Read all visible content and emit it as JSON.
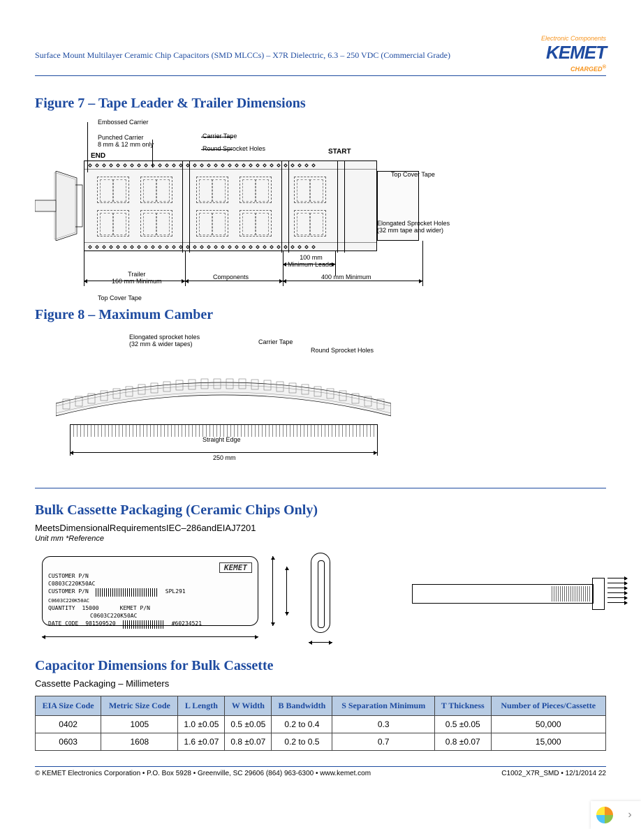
{
  "header": {
    "doc_title": "Surface Mount Multilayer Ceramic Chip Capacitors (SMD MLCCs) – X7R Dielectric, 6.3 – 250 VDC (Commercial Grade)",
    "logo_tagline": "Electronic Components",
    "logo_text": "KEMET",
    "logo_charged": "CHARGED"
  },
  "figure7": {
    "title": "Figure 7 – Tape Leader & Trailer Dimensions",
    "labels": {
      "embossed": "Embossed Carrier",
      "punched": "Punched Carrier\n8 mm & 12 mm only",
      "end": "END",
      "carrier_tape": "Carrier Tape",
      "round_holes": "Round Sprocket Holes",
      "start": "START",
      "top_cover_right": "Top Cover Tape",
      "elongated": "Elongated Sprocket Holes\n(32 mm tape and wider)",
      "top_cover_left": "Top Cover Tape",
      "trailer": "Trailer\n160 mm Minimum",
      "components": "Components",
      "min_leader_100": "100 mm\nMinimum Leader",
      "min_400": "400 mm Minimum"
    }
  },
  "figure8": {
    "title": "Figure 8 – Maximum Camber",
    "labels": {
      "elongated": "Elongated sprocket holes\n(32 mm & wider tapes)",
      "carrier": "Carrier Tape",
      "round": "Round Sprocket Holes",
      "straight": "Straight Edge",
      "dim250": "250 mm"
    }
  },
  "bulk": {
    "title": "Bulk Cassette Packaging (Ceramic Chips Only)",
    "subtitle": "MeetsDimensionalRequirementsIEC–286andEIAJ7201",
    "unit_note": "Unit mm  *Reference",
    "cassette_label": {
      "customer_pn_lbl": "CUSTOMER P/N",
      "customer_pn": "C0803C220K50AC",
      "kemet_logo": "KEMET",
      "customer_pn2_lbl": "CUSTOMER P/N",
      "customer_pn2": "C0603C220K50AC",
      "spl": "SPL291",
      "qty_lbl": "QUANTITY",
      "qty": "15000",
      "kemet_pn_lbl": "KEMET P/N",
      "kemet_pn": "C0603C220K50AC",
      "date_lbl": "DATE CODE",
      "date": "981509520",
      "lot": "#60234521"
    }
  },
  "dims_table": {
    "title": "Capacitor Dimensions for Bulk Cassette",
    "caption": "Cassette Packaging – Millimeters",
    "columns": [
      "EIA Size Code",
      "Metric Size Code",
      "L Length",
      "W Width",
      "B Bandwidth",
      "S Separation Minimum",
      "T Thickness",
      "Number of Pieces/Cassette"
    ],
    "rows": [
      [
        "0402",
        "1005",
        "1.0 ±0.05",
        "0.5 ±0.05",
        "0.2 to 0.4",
        "0.3",
        "0.5 ±0.05",
        "50,000"
      ],
      [
        "0603",
        "1608",
        "1.6 ±0.07",
        "0.8 ±0.07",
        "0.2 to 0.5",
        "0.7",
        "0.8 ±0.07",
        "15,000"
      ]
    ]
  },
  "footer": {
    "left": "© KEMET Electronics Corporation • P.O. Box 5928 • Greenville, SC 29606 (864) 963-6300 • www.kemet.com",
    "right": "C1002_X7R_SMD • 12/1/2014  22"
  },
  "colors": {
    "brand_blue": "#1e4ba0",
    "brand_orange": "#f7941e",
    "table_header_bg": "#b8cce4"
  }
}
